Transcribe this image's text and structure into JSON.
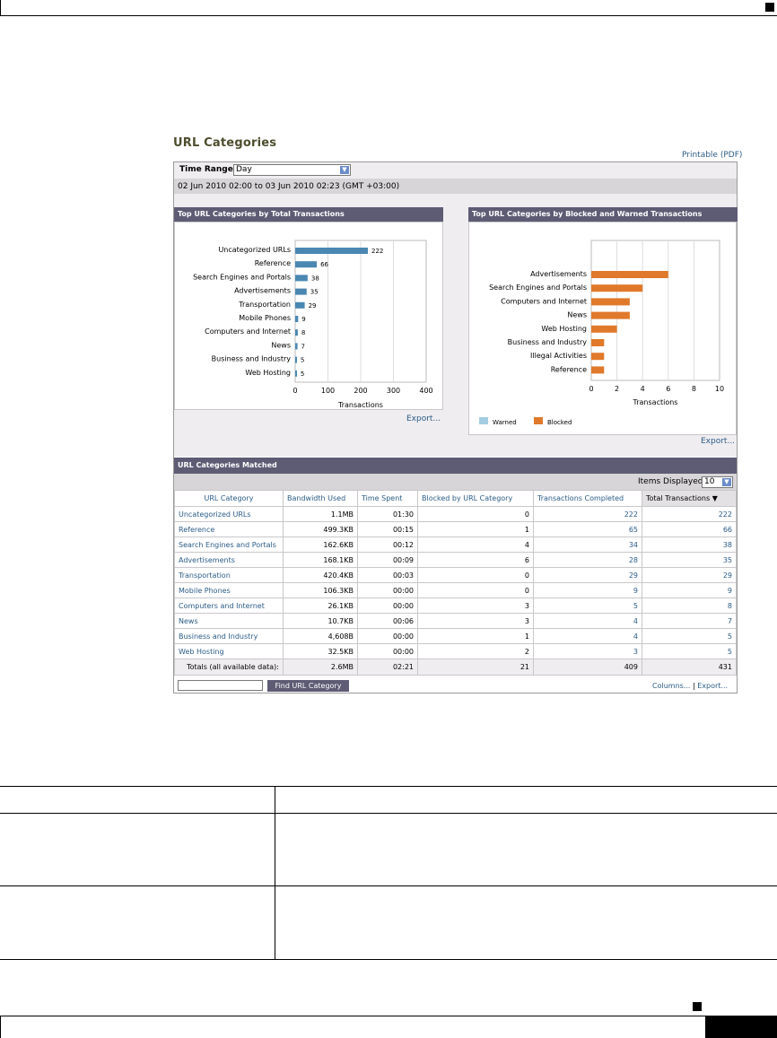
{
  "page": {
    "title": "URL Categories",
    "printable": "Printable (PDF)"
  },
  "filter": {
    "time_range_label": "Time Range:",
    "time_range_value": "Day",
    "date_range": "02 Jun 2010 02:00 to 03 Jun 2010 02:23 (GMT +03:00)"
  },
  "chart_data": [
    {
      "type": "bar",
      "title": "Top URL Categories by Total Transactions",
      "orientation": "horizontal",
      "categories": [
        "Uncategorized URLs",
        "Reference",
        "Search Engines and Portals",
        "Advertisements",
        "Transportation",
        "Mobile Phones",
        "Computers and Internet",
        "News",
        "Business and Industry",
        "Web Hosting"
      ],
      "values": [
        222,
        66,
        38,
        35,
        29,
        9,
        8,
        7,
        5,
        5
      ],
      "data_labels": [
        "222",
        "66",
        "38",
        "35",
        "29",
        "9",
        "8",
        "7",
        "5",
        "5"
      ],
      "xlabel": "Transactions",
      "xlim": [
        0,
        400
      ],
      "xticks": [
        "0",
        "100",
        "200",
        "300",
        "400"
      ],
      "color": "#4a87b2",
      "grid": true
    },
    {
      "type": "bar",
      "title": "Top URL Categories by Blocked and Warned Transactions",
      "orientation": "horizontal",
      "stacked": true,
      "categories": [
        "Advertisements",
        "Search Engines and Portals",
        "Computers and Internet",
        "News",
        "Web Hosting",
        "Business and Industry",
        "Illegal Activities",
        "Reference"
      ],
      "series": [
        {
          "name": "Warned",
          "values": [
            0,
            0,
            0,
            0,
            0,
            0,
            0,
            0
          ],
          "color": "#a3cde0"
        },
        {
          "name": "Blocked",
          "values": [
            6,
            4,
            3,
            3,
            2,
            1,
            1,
            1
          ],
          "color": "#e0792b"
        }
      ],
      "xlabel": "Transactions",
      "xlim": [
        0,
        10
      ],
      "xticks": [
        "0",
        "2",
        "4",
        "6",
        "8",
        "10"
      ],
      "legend": "bottom-left",
      "grid": true
    }
  ],
  "panels": {
    "left_export": "Export...",
    "right_export": "Export..."
  },
  "table": {
    "title": "URL Categories Matched",
    "items_label": "Items Displayed",
    "items_value": "10",
    "columns": [
      "URL Category",
      "Bandwidth Used",
      "Time Spent",
      "Blocked by URL Category",
      "Transactions Completed",
      "Total Transactions ▼"
    ],
    "rows": [
      [
        "Uncategorized URLs",
        "1.1MB",
        "01:30",
        "0",
        "222",
        "222"
      ],
      [
        "Reference",
        "499.3KB",
        "00:15",
        "1",
        "65",
        "66"
      ],
      [
        "Search Engines and Portals",
        "162.6KB",
        "00:12",
        "4",
        "34",
        "38"
      ],
      [
        "Advertisements",
        "168.1KB",
        "00:09",
        "6",
        "28",
        "35"
      ],
      [
        "Transportation",
        "420.4KB",
        "00:03",
        "0",
        "29",
        "29"
      ],
      [
        "Mobile Phones",
        "106.3KB",
        "00:00",
        "0",
        "9",
        "9"
      ],
      [
        "Computers and Internet",
        "26.1KB",
        "00:00",
        "3",
        "5",
        "8"
      ],
      [
        "News",
        "10.7KB",
        "00:06",
        "3",
        "4",
        "7"
      ],
      [
        "Business and Industry",
        "4,608B",
        "00:00",
        "1",
        "4",
        "5"
      ],
      [
        "Web Hosting",
        "32.5KB",
        "00:00",
        "2",
        "3",
        "5"
      ]
    ],
    "totals": [
      "Totals (all available data):",
      "2.6MB",
      "02:21",
      "21",
      "409",
      "431"
    ],
    "find_button": "Find URL Category",
    "columns_link": "Columns...",
    "separator": "|",
    "export_link": "Export..."
  }
}
